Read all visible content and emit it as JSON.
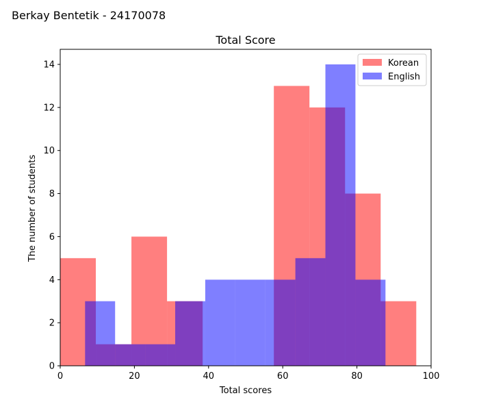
{
  "figure": {
    "suptitle": "Berkay Bentetik - 24170078"
  },
  "chart_data": {
    "type": "histogram",
    "title": "Total Score",
    "xlabel": "Total scores",
    "ylabel": "The number of students",
    "xlim": [
      0,
      100
    ],
    "ylim": [
      0,
      14.7
    ],
    "xticks": [
      0,
      20,
      40,
      60,
      80,
      100
    ],
    "yticks": [
      0,
      2,
      4,
      6,
      8,
      10,
      12,
      14
    ],
    "grid": false,
    "legend": "top-right",
    "series": [
      {
        "name": "Korean",
        "color": "#ff0000",
        "alpha": 0.5,
        "bins": [
          {
            "x0": 0.0,
            "x1": 9.6,
            "count": 5
          },
          {
            "x0": 9.6,
            "x1": 19.2,
            "count": 1
          },
          {
            "x0": 19.2,
            "x1": 28.8,
            "count": 6
          },
          {
            "x0": 28.8,
            "x1": 38.4,
            "count": 3
          },
          {
            "x0": 38.4,
            "x1": 48.0,
            "count": 0
          },
          {
            "x0": 48.0,
            "x1": 57.6,
            "count": 0
          },
          {
            "x0": 57.6,
            "x1": 67.2,
            "count": 13
          },
          {
            "x0": 67.2,
            "x1": 76.8,
            "count": 12
          },
          {
            "x0": 76.8,
            "x1": 86.4,
            "count": 8
          },
          {
            "x0": 86.4,
            "x1": 96.0,
            "count": 3
          }
        ]
      },
      {
        "name": "English",
        "color": "#0000ff",
        "alpha": 0.5,
        "bins": [
          {
            "x0": 6.7,
            "x1": 14.8,
            "count": 3
          },
          {
            "x0": 14.8,
            "x1": 22.9,
            "count": 1
          },
          {
            "x0": 22.9,
            "x1": 31.0,
            "count": 1
          },
          {
            "x0": 31.0,
            "x1": 39.1,
            "count": 3
          },
          {
            "x0": 39.1,
            "x1": 47.2,
            "count": 4
          },
          {
            "x0": 47.2,
            "x1": 55.3,
            "count": 4
          },
          {
            "x0": 55.3,
            "x1": 63.4,
            "count": 4
          },
          {
            "x0": 63.4,
            "x1": 71.5,
            "count": 5
          },
          {
            "x0": 71.5,
            "x1": 79.6,
            "count": 14
          },
          {
            "x0": 79.6,
            "x1": 87.7,
            "count": 4
          }
        ]
      }
    ]
  }
}
